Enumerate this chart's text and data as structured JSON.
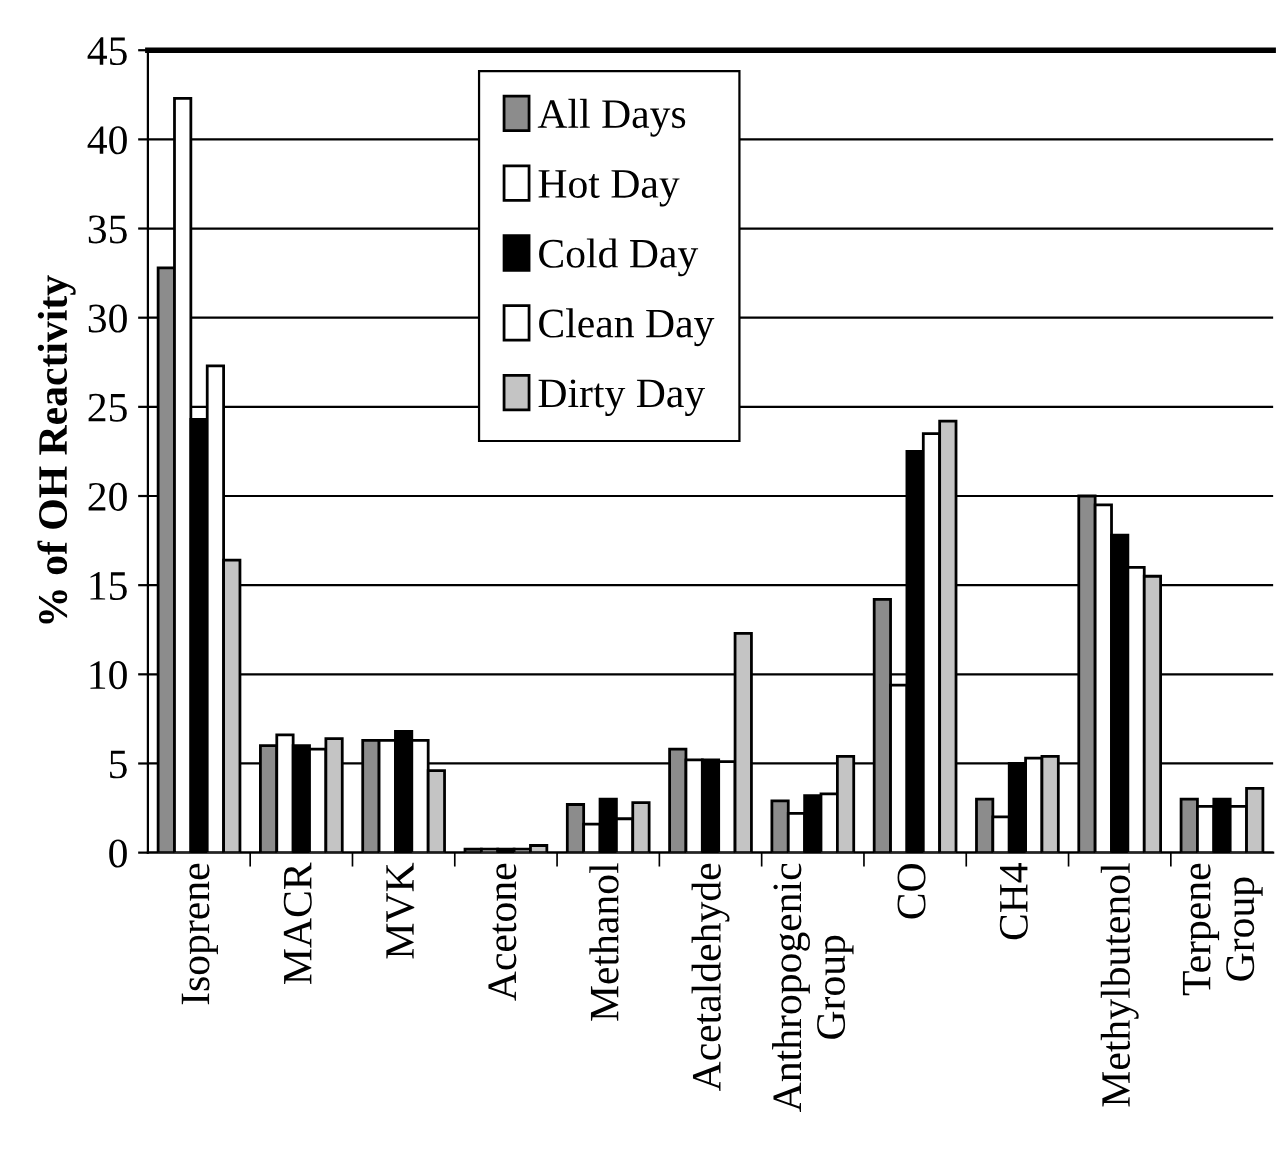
{
  "chart_data": {
    "type": "bar",
    "ylabel": "% of OH Reactivity",
    "categories": [
      "Isoprene",
      "MACR",
      "MVK",
      "Acetone",
      "Methanol",
      "Acetaldehyde",
      "Anthropogenic\nGroup",
      "CO",
      "CH4",
      "Methylbutenol",
      "Terpene\nGroup"
    ],
    "series": [
      {
        "name": "All Days",
        "color": "#8c8c8c",
        "values": [
          32.8,
          6.0,
          6.3,
          0.2,
          2.7,
          5.8,
          2.9,
          14.2,
          3.0,
          20.0,
          3.0
        ]
      },
      {
        "name": "Hot Day",
        "color": "#ffffff",
        "values": [
          42.3,
          6.6,
          6.3,
          0.2,
          1.6,
          5.2,
          2.2,
          9.4,
          2.0,
          19.5,
          2.6
        ]
      },
      {
        "name": "Cold Day",
        "color": "#000000",
        "values": [
          24.3,
          6.0,
          6.8,
          0.2,
          3.0,
          5.2,
          3.2,
          22.5,
          5.0,
          17.8,
          3.0
        ]
      },
      {
        "name": "Clean Day",
        "color": "#ffffff",
        "values": [
          27.3,
          5.8,
          6.3,
          0.2,
          1.9,
          5.1,
          3.3,
          23.5,
          5.3,
          16.0,
          2.6
        ]
      },
      {
        "name": "Dirty Day",
        "color": "#c4c4c4",
        "values": [
          16.4,
          6.4,
          4.6,
          0.4,
          2.8,
          12.3,
          5.4,
          24.2,
          5.4,
          15.5,
          3.6
        ]
      }
    ],
    "ylim": [
      0,
      45
    ],
    "yticks": [
      0,
      5,
      10,
      15,
      20,
      25,
      30,
      35,
      40,
      45
    ],
    "grid": "y",
    "legend": "top"
  }
}
